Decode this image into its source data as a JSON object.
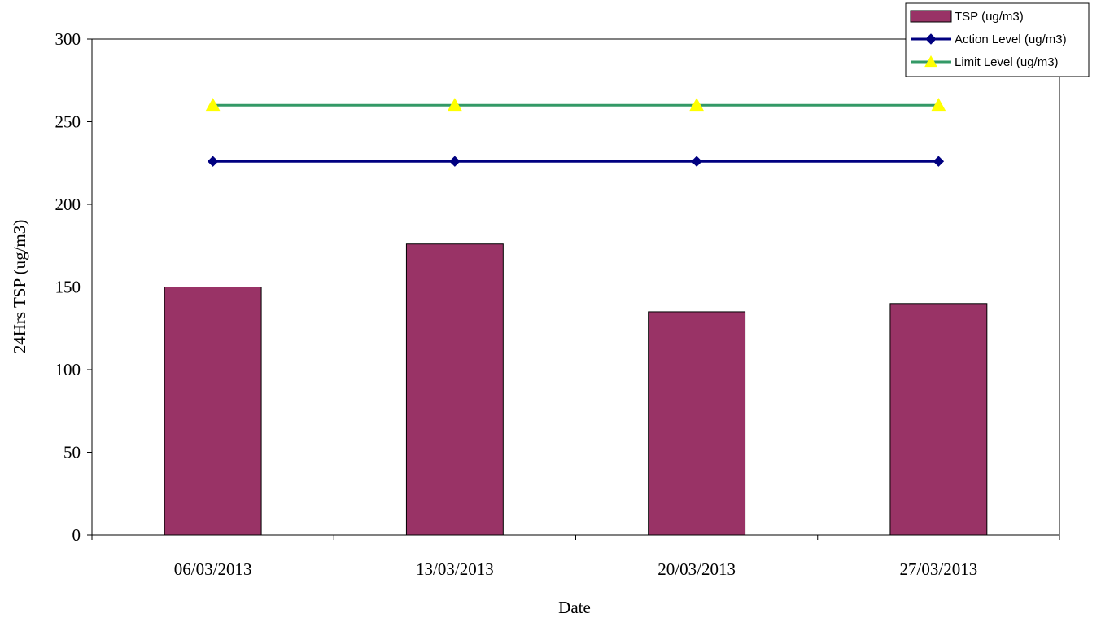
{
  "chart_data": {
    "type": "bar",
    "categories": [
      "06/03/2013",
      "13/03/2013",
      "20/03/2013",
      "27/03/2013"
    ],
    "series": [
      {
        "name": "TSP (ug/m3)",
        "type": "bar",
        "values": [
          150,
          176,
          135,
          140
        ],
        "color": "#993366"
      },
      {
        "name": "Action Level (ug/m3)",
        "type": "line",
        "values": [
          226,
          226,
          226,
          226
        ],
        "color": "#000080",
        "marker": "diamond",
        "marker_color": "#000080"
      },
      {
        "name": "Limit Level (ug/m3)",
        "type": "line",
        "values": [
          260,
          260,
          260,
          260
        ],
        "color": "#339966",
        "marker": "triangle",
        "marker_color": "#ffff00"
      }
    ],
    "title": "",
    "xlabel": "Date",
    "ylabel": "24Hrs TSP (ug/m3)",
    "ylim": [
      0,
      300
    ],
    "yticks": [
      0,
      50,
      100,
      150,
      200,
      250,
      300
    ],
    "grid": false,
    "legend_position": "top-right"
  }
}
